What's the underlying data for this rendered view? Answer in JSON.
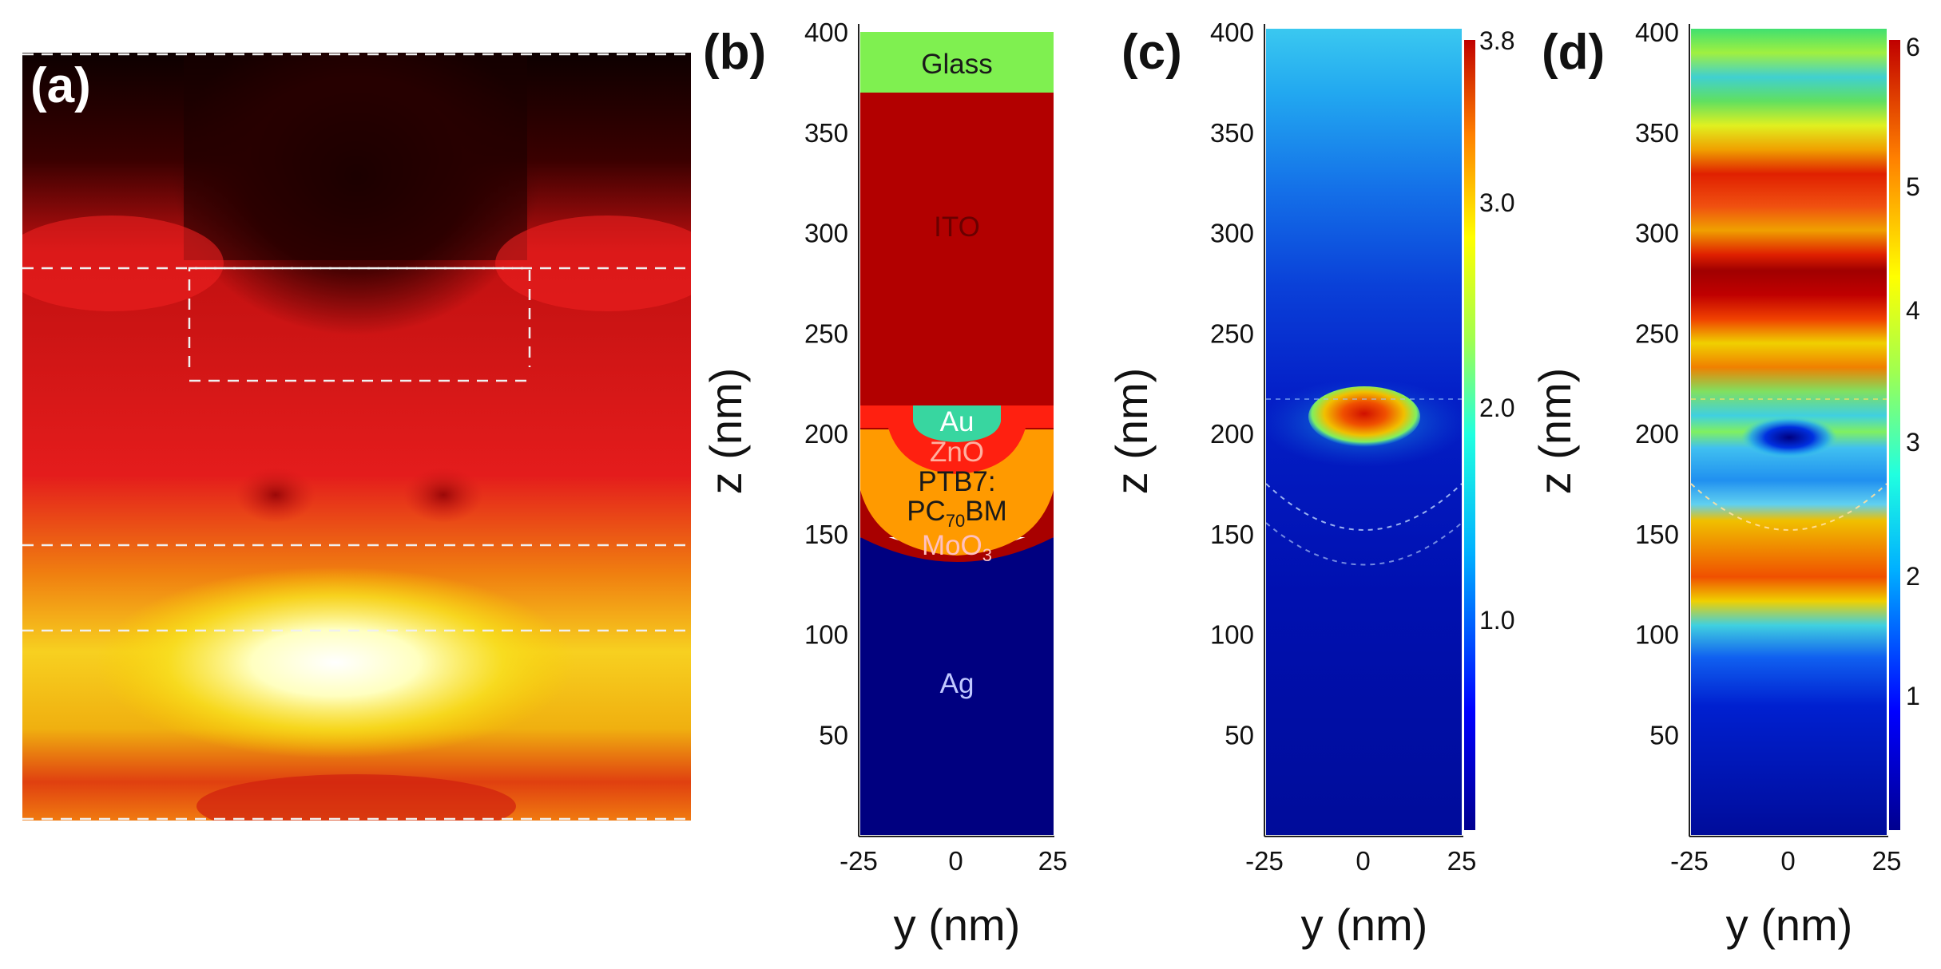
{
  "figure": {
    "panels": {
      "a": {
        "label": "(a)"
      },
      "b": {
        "label": "(b)"
      },
      "c": {
        "label": "(c)"
      },
      "d": {
        "label": "(d)"
      }
    },
    "axes": {
      "z_label": "z (nm)",
      "y_label": "y (nm)",
      "z_ticks": [
        "400",
        "350",
        "300",
        "250",
        "200",
        "150",
        "100",
        "50"
      ],
      "y_ticks": [
        "-25",
        "0",
        "25"
      ]
    },
    "layers": {
      "glass": "Glass",
      "ito": "ITO",
      "au": "Au",
      "zno": "ZnO",
      "ptb7": "PTB7:",
      "pcbm_main": "PC",
      "pcbm_sub": "70",
      "pcbm_tail": "BM",
      "moo3_main": "MoO",
      "moo3_sub": "3",
      "ag": "Ag"
    },
    "colorbar_c": {
      "ticks": [
        "3.8",
        "3.0",
        "2.0",
        "1.0"
      ]
    },
    "colorbar_d": {
      "ticks": [
        "6",
        "5",
        "4",
        "3",
        "2",
        "1"
      ]
    },
    "colors": {
      "glass": "#7ff050",
      "ito": "#b20000",
      "au": "#38d6a0",
      "zno": "#ff2010",
      "ptb7": "#ff9a00",
      "moo3": "#a80000",
      "ag": "#000080"
    }
  }
}
